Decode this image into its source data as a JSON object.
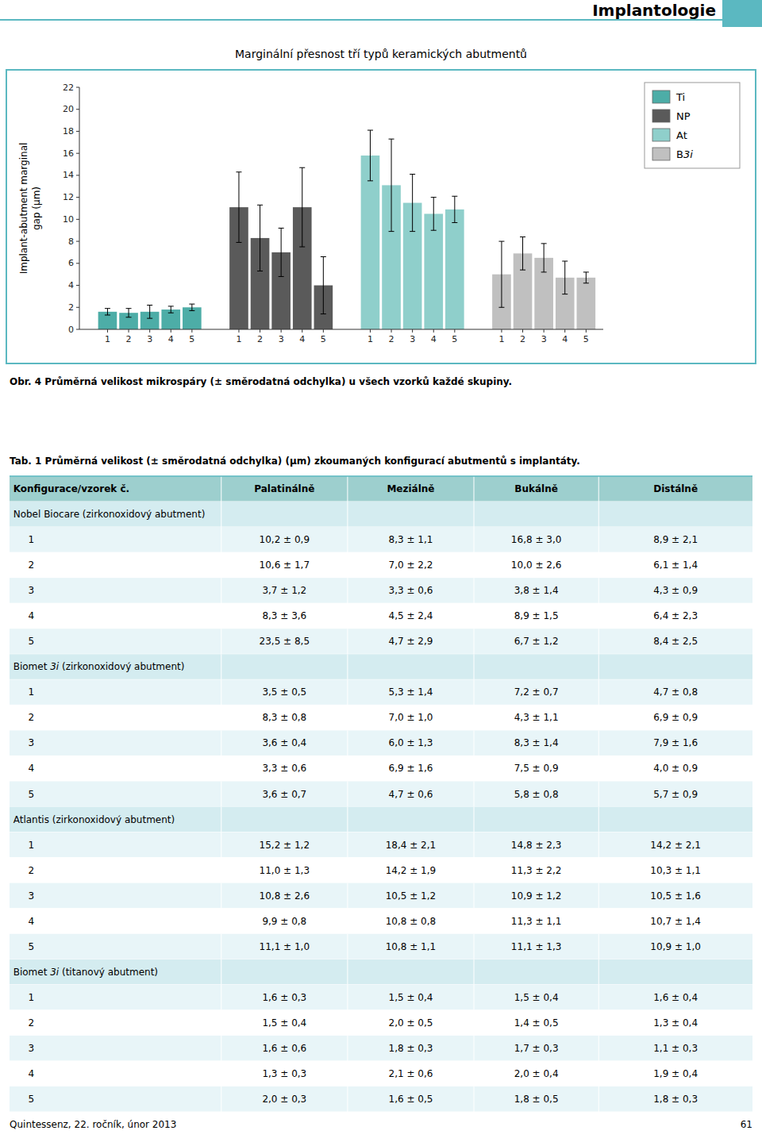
{
  "page": {
    "title": "Implantologie",
    "subtitle": "Marginální přesnost tří typů keramických abutmentů",
    "figure_caption": "Obr. 4 Průměrná velikost mikrospáry (± směrodatná odchylka) u všech vzorků každé skupiny.",
    "table_caption": "Tab. 1 Průměrná velikost (± směrodatná odchylka) (μm) zkoumaných konfigurací abutmentů s implantáty.",
    "footer": "Quintessenz, 22. ročník, únor 2013",
    "footer_right": "61",
    "border_color": "#5BB8C1"
  },
  "chart_data": {
    "type": "bar",
    "categories": [
      "1",
      "2",
      "3",
      "4",
      "5"
    ],
    "series": [
      {
        "name": "Ti",
        "color": "#4DADA7",
        "values": [
          1.6,
          1.5,
          1.6,
          1.8,
          2.0
        ],
        "errors": [
          0.3,
          0.4,
          0.6,
          0.3,
          0.3
        ]
      },
      {
        "name": "NP",
        "color": "#5A5A5A",
        "values": [
          11.1,
          8.3,
          7.0,
          11.1,
          4.0
        ],
        "errors": [
          3.2,
          3.0,
          2.2,
          3.6,
          2.6
        ]
      },
      {
        "name": "At",
        "color": "#8FCFCB",
        "values": [
          15.8,
          13.1,
          11.5,
          10.5,
          10.9
        ],
        "errors": [
          2.3,
          4.2,
          2.6,
          1.5,
          1.2
        ]
      },
      {
        "name": "B3i",
        "italic_part": "3i",
        "color": "#C0C0C0",
        "values": [
          5.0,
          6.9,
          6.5,
          4.7,
          4.7
        ],
        "errors": [
          3.0,
          1.5,
          1.3,
          1.5,
          0.5
        ]
      }
    ],
    "ylabel": "Implant-abutment marginal\ngap (μm)",
    "ylim": [
      0,
      22
    ],
    "yticks": [
      0,
      2,
      4,
      6,
      8,
      10,
      12,
      14,
      16,
      18,
      20,
      22
    ],
    "grid": false,
    "legend": "upper right"
  },
  "table": {
    "header_bg": "#9DCFCE",
    "group_bg": "#D4ECF0",
    "row_bgs": [
      "#E8F5F8",
      "#FFFFFF"
    ],
    "columns": [
      "Konfigurace/vzorek č.",
      "Palatinálně",
      "Meziálně",
      "Bukálně",
      "Distálně"
    ],
    "groups": [
      {
        "name": "Nobel Biocare (zirkonoxidový abutment)",
        "italic_part": null,
        "rows": [
          [
            "1",
            "10,2 ± 0,9",
            "8,3 ± 1,1",
            "16,8 ± 3,0",
            "8,9 ± 2,1"
          ],
          [
            "2",
            "10,6 ± 1,7",
            "7,0 ± 2,2",
            "10,0 ± 2,6",
            "6,1 ± 1,4"
          ],
          [
            "3",
            "3,7 ± 1,2",
            "3,3 ± 0,6",
            "3,8 ± 1,4",
            "4,3 ± 0,9"
          ],
          [
            "4",
            "8,3 ± 3,6",
            "4,5 ± 2,4",
            "8,9 ± 1,5",
            "6,4 ± 2,3"
          ],
          [
            "5",
            "23,5 ± 8,5",
            "4,7 ± 2,9",
            "6,7 ± 1,2",
            "8,4 ± 2,5"
          ]
        ]
      },
      {
        "name": "Biomet 3i (zirkonoxidový abutment)",
        "italic_part": "3i",
        "rows": [
          [
            "1",
            "3,5 ± 0,5",
            "5,3 ± 1,4",
            "7,2 ± 0,7",
            "4,7 ± 0,8"
          ],
          [
            "2",
            "8,3 ± 0,8",
            "7,0 ± 1,0",
            "4,3 ± 1,1",
            "6,9 ± 0,9"
          ],
          [
            "3",
            "3,6 ± 0,4",
            "6,0 ± 1,3",
            "8,3 ± 1,4",
            "7,9 ± 1,6"
          ],
          [
            "4",
            "3,3 ± 0,6",
            "6,9 ± 1,6",
            "7,5 ± 0,9",
            "4,0 ± 0,9"
          ],
          [
            "5",
            "3,6 ± 0,7",
            "4,7 ± 0,6",
            "5,8 ± 0,8",
            "5,7 ± 0,9"
          ]
        ]
      },
      {
        "name": "Atlantis (zirkonoxidový abutment)",
        "italic_part": null,
        "rows": [
          [
            "1",
            "15,2 ± 1,2",
            "18,4 ± 2,1",
            "14,8 ± 2,3",
            "14,2 ± 2,1"
          ],
          [
            "2",
            "11,0 ± 1,3",
            "14,2 ± 1,9",
            "11,3 ± 2,2",
            "10,3 ± 1,1"
          ],
          [
            "3",
            "10,8 ± 2,6",
            "10,5 ± 1,2",
            "10,9 ± 1,2",
            "10,5 ± 1,6"
          ],
          [
            "4",
            "9,9 ± 0,8",
            "10,8 ± 0,8",
            "11,3 ± 1,1",
            "10,7 ± 1,4"
          ],
          [
            "5",
            "11,1 ± 1,0",
            "10,8 ± 1,1",
            "11,1 ± 1,3",
            "10,9 ± 1,0"
          ]
        ]
      },
      {
        "name": "Biomet 3i (titanový abutment)",
        "italic_part": "3i",
        "rows": [
          [
            "1",
            "1,6 ± 0,3",
            "1,5 ± 0,4",
            "1,5 ± 0,4",
            "1,6 ± 0,4"
          ],
          [
            "2",
            "1,5 ± 0,4",
            "2,0 ± 0,5",
            "1,4 ± 0,5",
            "1,3 ± 0,4"
          ],
          [
            "3",
            "1,6 ± 0,6",
            "1,8 ± 0,3",
            "1,7 ± 0,3",
            "1,1 ± 0,3"
          ],
          [
            "4",
            "1,3 ± 0,3",
            "2,1 ± 0,6",
            "2,0 ± 0,4",
            "1,9 ± 0,4"
          ],
          [
            "5",
            "2,0 ± 0,3",
            "1,6 ± 0,5",
            "1,8 ± 0,5",
            "1,8 ± 0,3"
          ]
        ]
      }
    ]
  }
}
